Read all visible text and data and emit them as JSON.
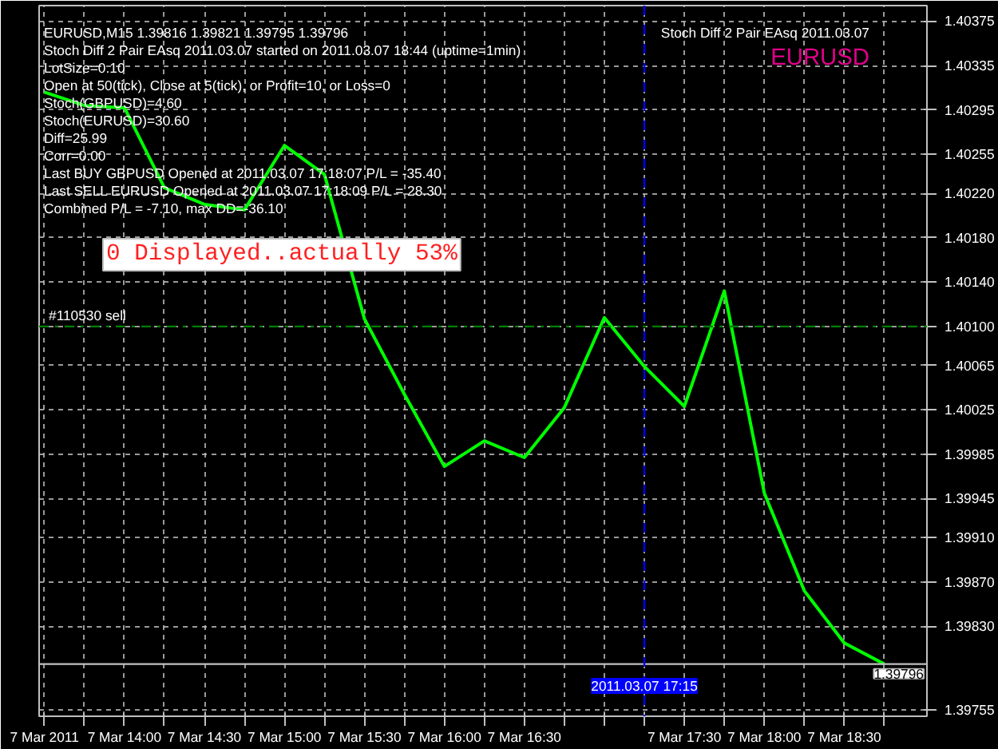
{
  "chart_data": {
    "type": "line",
    "title": "EURUSD,M15  1.39816 1.39821 1.39795 1.39796",
    "subtitle": "Stoch Diff 2 Pair EAsq 2011.03.07 started on 2011.03.07 18:44 (uptime=1min)",
    "x": [
      "2011-03-07T13:30",
      "2011-03-07T13:45",
      "2011-03-07T14:00",
      "2011-03-07T14:15",
      "2011-03-07T14:30",
      "2011-03-07T14:45",
      "2011-03-07T15:00",
      "2011-03-07T15:15",
      "2011-03-07T15:30",
      "2011-03-07T15:45",
      "2011-03-07T16:00",
      "2011-03-07T16:15",
      "2011-03-07T16:30",
      "2011-03-07T16:45",
      "2011-03-07T17:00",
      "2011-03-07T17:15",
      "2011-03-07T17:30",
      "2011-03-07T17:45",
      "2011-03-07T18:00",
      "2011-03-07T18:15",
      "2011-03-07T18:30",
      "2011-03-07T18:45"
    ],
    "series": [
      {
        "color": "#00ff00",
        "values": [
          1.40311,
          1.40299,
          1.40297,
          1.40225,
          1.4021,
          1.40205,
          1.40263,
          1.40237,
          1.40107,
          1.40039,
          1.39974,
          1.39997,
          1.39982,
          1.40027,
          1.40108,
          1.40064,
          1.40028,
          1.40132,
          1.3995,
          1.39862,
          1.39815,
          1.39796
        ]
      }
    ],
    "xlim": [
      "2011-03-07T13:28",
      "2011-03-07T19:01"
    ],
    "xticks": [
      {
        "value": "2011-03-07T13:30",
        "label": "7 Mar 2011"
      },
      {
        "value": "2011-03-07T13:45",
        "label": null
      },
      {
        "value": "2011-03-07T14:00",
        "label": "7 Mar 14:00"
      },
      {
        "value": "2011-03-07T14:15",
        "label": null
      },
      {
        "value": "2011-03-07T14:30",
        "label": "7 Mar 14:30"
      },
      {
        "value": "2011-03-07T14:45",
        "label": null
      },
      {
        "value": "2011-03-07T15:00",
        "label": "7 Mar 15:00"
      },
      {
        "value": "2011-03-07T15:15",
        "label": null
      },
      {
        "value": "2011-03-07T15:30",
        "label": "7 Mar 15:30"
      },
      {
        "value": "2011-03-07T15:45",
        "label": null
      },
      {
        "value": "2011-03-07T16:00",
        "label": "7 Mar 16:00"
      },
      {
        "value": "2011-03-07T16:15",
        "label": null
      },
      {
        "value": "2011-03-07T16:30",
        "label": "7 Mar 16:30"
      },
      {
        "value": "2011-03-07T16:45",
        "label": null
      },
      {
        "value": "2011-03-07T17:00",
        "label": null
      },
      {
        "value": "2011-03-07T17:15",
        "label": null
      },
      {
        "value": "2011-03-07T17:30",
        "label": "7 Mar 17:30"
      },
      {
        "value": "2011-03-07T17:45",
        "label": null
      },
      {
        "value": "2011-03-07T18:00",
        "label": "7 Mar 18:00"
      },
      {
        "value": "2011-03-07T18:15",
        "label": null
      },
      {
        "value": "2011-03-07T18:30",
        "label": "7 Mar 18:30"
      },
      {
        "value": "2011-03-07T18:45",
        "label": null
      }
    ],
    "ylim": [
      1.39749,
      1.40389
    ],
    "yticks": [
      1.40375,
      1.40335,
      1.40295,
      1.40255,
      {
        "value": 1.4022,
        "label": "1.40220"
      },
      {
        "value": 1.4018,
        "label": "1.40180"
      },
      {
        "value": 1.4014,
        "label": "1.40140"
      },
      {
        "value": 1.401,
        "label": "1.40100"
      },
      1.40065,
      1.40025,
      1.39985,
      1.39945,
      {
        "value": 1.3991,
        "label": "1.39910"
      },
      {
        "value": 1.3987,
        "label": "1.39870"
      },
      {
        "value": 1.3983,
        "label": "1.39830"
      },
      1.39755
    ],
    "grid": true,
    "ref_lines": [
      {
        "axis": "y",
        "value": 1.401,
        "label": "#110530 sell",
        "color": "#008000",
        "line_style": "dashdot"
      },
      {
        "axis": "y",
        "value": 1.39796,
        "label": "1.39796",
        "color": "#c0c0c0",
        "line_style": "solid"
      },
      {
        "axis": "x",
        "value": "2011-03-07T17:15",
        "label": "2011.03.07 17:15",
        "color": "#0000ff",
        "line_style": "dashed"
      }
    ],
    "annotations": [
      "LotSize=0.10",
      "Open at 50(tick), Close at 5(tick), or Profit=10, or Loss=0",
      "Stoch(GBPUSD)=4.60",
      "Stoch(EURUSD)=30.60",
      "Diff=25.99",
      "Corr=0.00",
      "Last BUY GBPUSD Opened at 2011.03.07 17:18:07 P/L = -35.40",
      "Last SELL EURUSD Opened at 2011.03.07 17:18:09 P/L = 28.30",
      "Combined P/L = -7.10, max DD=-36.10",
      "0 Displayed..actually 53%",
      "Stoch Diff 2 Pair EAsq 2011.03.07",
      "EURUSD"
    ]
  }
}
